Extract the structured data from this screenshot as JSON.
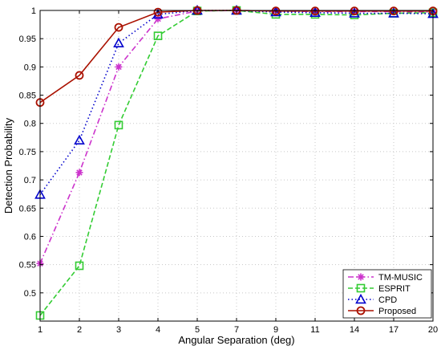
{
  "chart_data": {
    "type": "line",
    "title": "",
    "xlabel": "Angular Separation (deg)",
    "ylabel": "Detection Probability",
    "categories": [
      "1",
      "2",
      "3",
      "4",
      "5",
      "7",
      "9",
      "11",
      "14",
      "17",
      "20"
    ],
    "ylim": [
      0.45,
      1.0
    ],
    "yticks": [
      "0.5",
      "0.55",
      "0.6",
      "0.65",
      "0.7",
      "0.75",
      "0.8",
      "0.85",
      "0.9",
      "0.95",
      "1"
    ],
    "grid": true,
    "legend_position": "bottom-right",
    "series": [
      {
        "name": "TM-MUSIC",
        "color": "#cc33cc",
        "line_style": "dashdot",
        "marker": "asterisk",
        "values": [
          0.552,
          0.713,
          0.9,
          0.985,
          0.999,
          1.0,
          0.999,
          0.998,
          0.998,
          0.998,
          0.997
        ]
      },
      {
        "name": "ESPRIT",
        "color": "#33cc33",
        "line_style": "dashed",
        "marker": "square",
        "values": [
          0.46,
          0.548,
          0.797,
          0.955,
          0.999,
          1.0,
          0.993,
          0.993,
          0.992,
          0.995,
          0.996
        ]
      },
      {
        "name": "CPD",
        "color": "#0000cc",
        "line_style": "dotted",
        "marker": "triangle",
        "values": [
          0.674,
          0.77,
          0.942,
          0.993,
          1.0,
          1.0,
          0.997,
          0.996,
          0.995,
          0.995,
          0.994
        ]
      },
      {
        "name": "Proposed",
        "color": "#aa1100",
        "line_style": "solid",
        "marker": "circle",
        "values": [
          0.837,
          0.885,
          0.97,
          0.997,
          1.0,
          1.0,
          0.999,
          0.999,
          0.999,
          0.999,
          0.999
        ]
      }
    ]
  }
}
